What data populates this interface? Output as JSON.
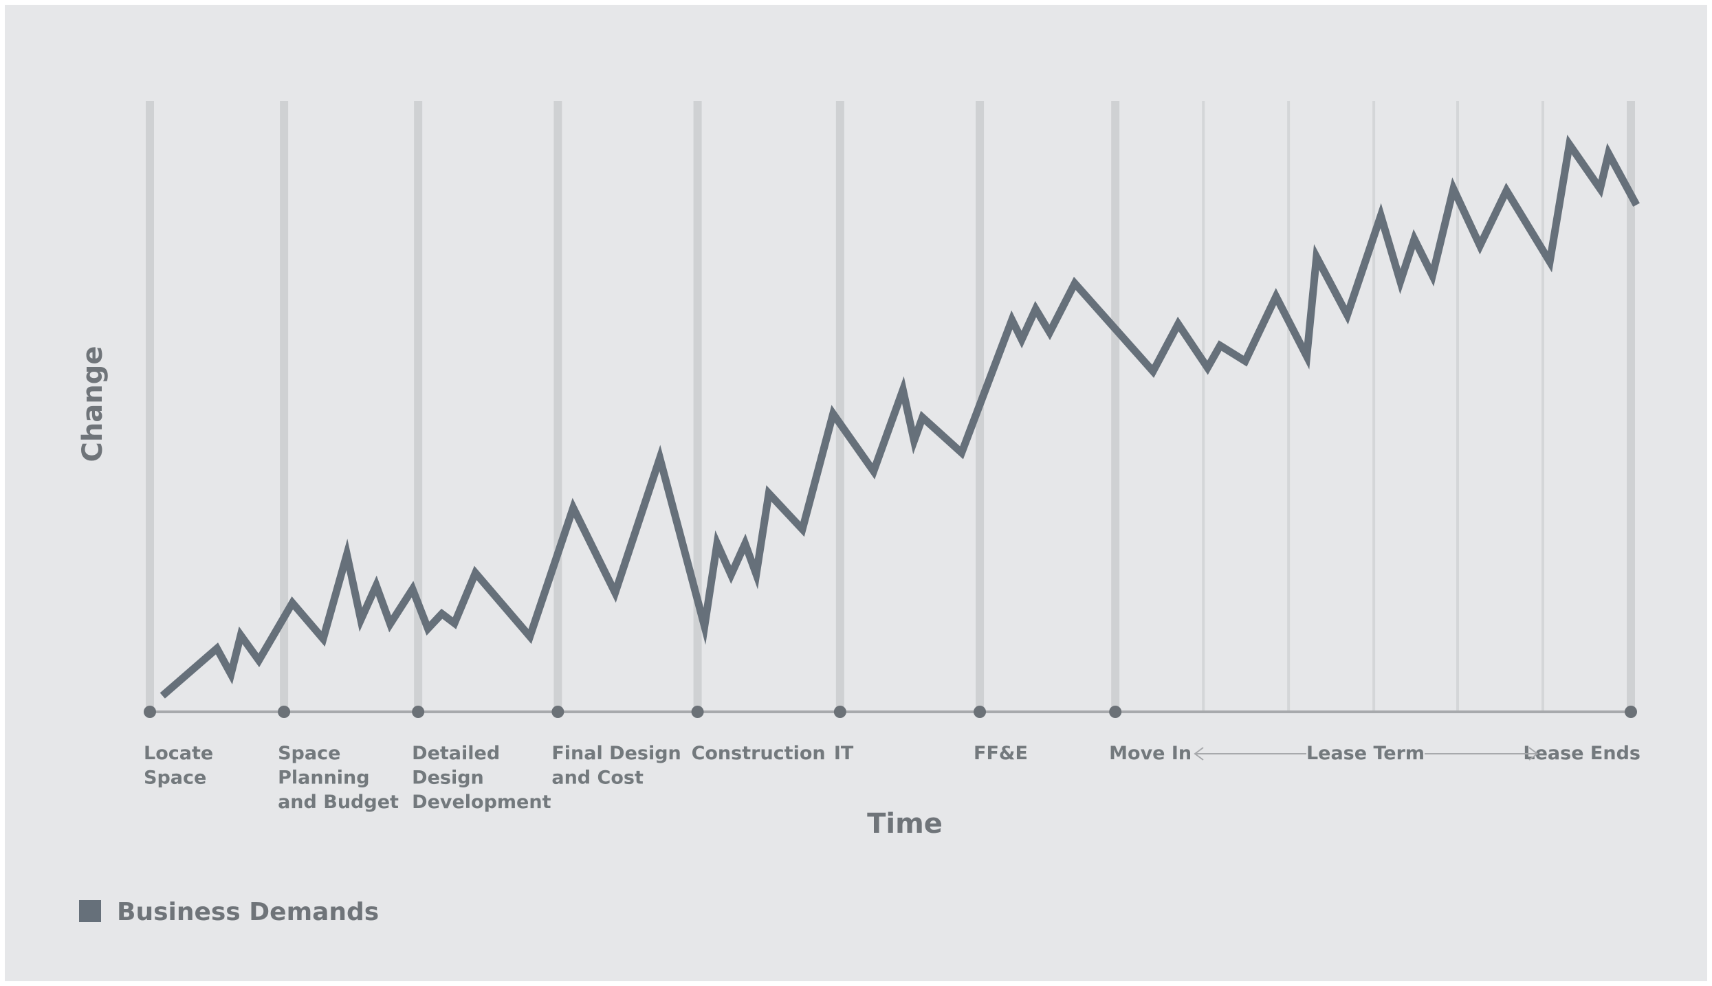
{
  "chart_data": {
    "type": "line",
    "xlabel": "Time",
    "ylabel": "Change",
    "x_range": [
      0,
      10.6
    ],
    "y_range": [
      0,
      100
    ],
    "grid": "vertical",
    "legend_position": "bottom-left",
    "colors": {
      "line": "#66707a",
      "major_grid": "#cfd1d3",
      "minor_grid": "#d4d6d8",
      "axis": "#a7a9ac",
      "marker": "#6b7177",
      "label": "#73797d",
      "background": "#e6e7e9"
    },
    "milestones": [
      {
        "x": 0,
        "lines": [
          "Locate",
          "Space"
        ]
      },
      {
        "x": 0.96,
        "lines": [
          "Space",
          "Planning",
          "and Budget"
        ]
      },
      {
        "x": 1.92,
        "lines": [
          "Detailed",
          "Design",
          "Development"
        ]
      },
      {
        "x": 2.92,
        "lines": [
          "Final Design",
          "and Cost"
        ]
      },
      {
        "x": 3.92,
        "lines": [
          "Construction"
        ]
      },
      {
        "x": 4.94,
        "lines": [
          "IT"
        ]
      },
      {
        "x": 5.94,
        "lines": [
          "FF&E"
        ]
      },
      {
        "x": 6.91,
        "lines": [
          "Move In"
        ]
      },
      {
        "x": 10.6,
        "lines": [
          "Lease Ends"
        ]
      }
    ],
    "lease_term": {
      "label": "Lease Term",
      "from_x": 6.91,
      "to_x": 10.6
    },
    "minor_grid_x": [
      7.54,
      8.15,
      8.76,
      9.36,
      9.97
    ],
    "series": [
      {
        "name": "Business Demands",
        "points": [
          [
            0.09,
            2.7
          ],
          [
            0.48,
            10.6
          ],
          [
            0.58,
            6.3
          ],
          [
            0.65,
            12.8
          ],
          [
            0.78,
            8.6
          ],
          [
            1.02,
            18.2
          ],
          [
            1.24,
            12.2
          ],
          [
            1.41,
            26.3
          ],
          [
            1.51,
            15.4
          ],
          [
            1.62,
            21.1
          ],
          [
            1.72,
            14.7
          ],
          [
            1.88,
            20.5
          ],
          [
            1.99,
            13.9
          ],
          [
            2.09,
            16.4
          ],
          [
            2.18,
            14.8
          ],
          [
            2.33,
            23.2
          ],
          [
            2.72,
            12.6
          ],
          [
            3.03,
            34.1
          ],
          [
            3.33,
            19.9
          ],
          [
            3.65,
            42.4
          ],
          [
            3.97,
            14.3
          ],
          [
            4.06,
            28.1
          ],
          [
            4.16,
            22.9
          ],
          [
            4.26,
            28.1
          ],
          [
            4.34,
            23.0
          ],
          [
            4.43,
            36.5
          ],
          [
            4.67,
            30.5
          ],
          [
            4.89,
            49.8
          ],
          [
            5.18,
            40.2
          ],
          [
            5.39,
            53.8
          ],
          [
            5.47,
            45.3
          ],
          [
            5.53,
            49.2
          ],
          [
            5.81,
            43.3
          ],
          [
            6.17,
            65.5
          ],
          [
            6.24,
            62.2
          ],
          [
            6.34,
            67.3
          ],
          [
            6.44,
            63.4
          ],
          [
            6.62,
            71.6
          ],
          [
            7.18,
            56.9
          ],
          [
            7.36,
            64.8
          ],
          [
            7.57,
            57.5
          ],
          [
            7.66,
            61.2
          ],
          [
            7.84,
            58.6
          ],
          [
            8.06,
            69.4
          ],
          [
            8.28,
            59.4
          ],
          [
            8.35,
            76.0
          ],
          [
            8.57,
            66.3
          ],
          [
            8.81,
            82.9
          ],
          [
            8.95,
            71.9
          ],
          [
            9.05,
            79.0
          ],
          [
            9.18,
            72.9
          ],
          [
            9.33,
            87.4
          ],
          [
            9.52,
            77.9
          ],
          [
            9.71,
            87.1
          ],
          [
            10.02,
            75.2
          ],
          [
            10.16,
            94.8
          ],
          [
            10.38,
            87.4
          ],
          [
            10.44,
            93.3
          ],
          [
            10.64,
            84.7
          ]
        ]
      }
    ]
  }
}
